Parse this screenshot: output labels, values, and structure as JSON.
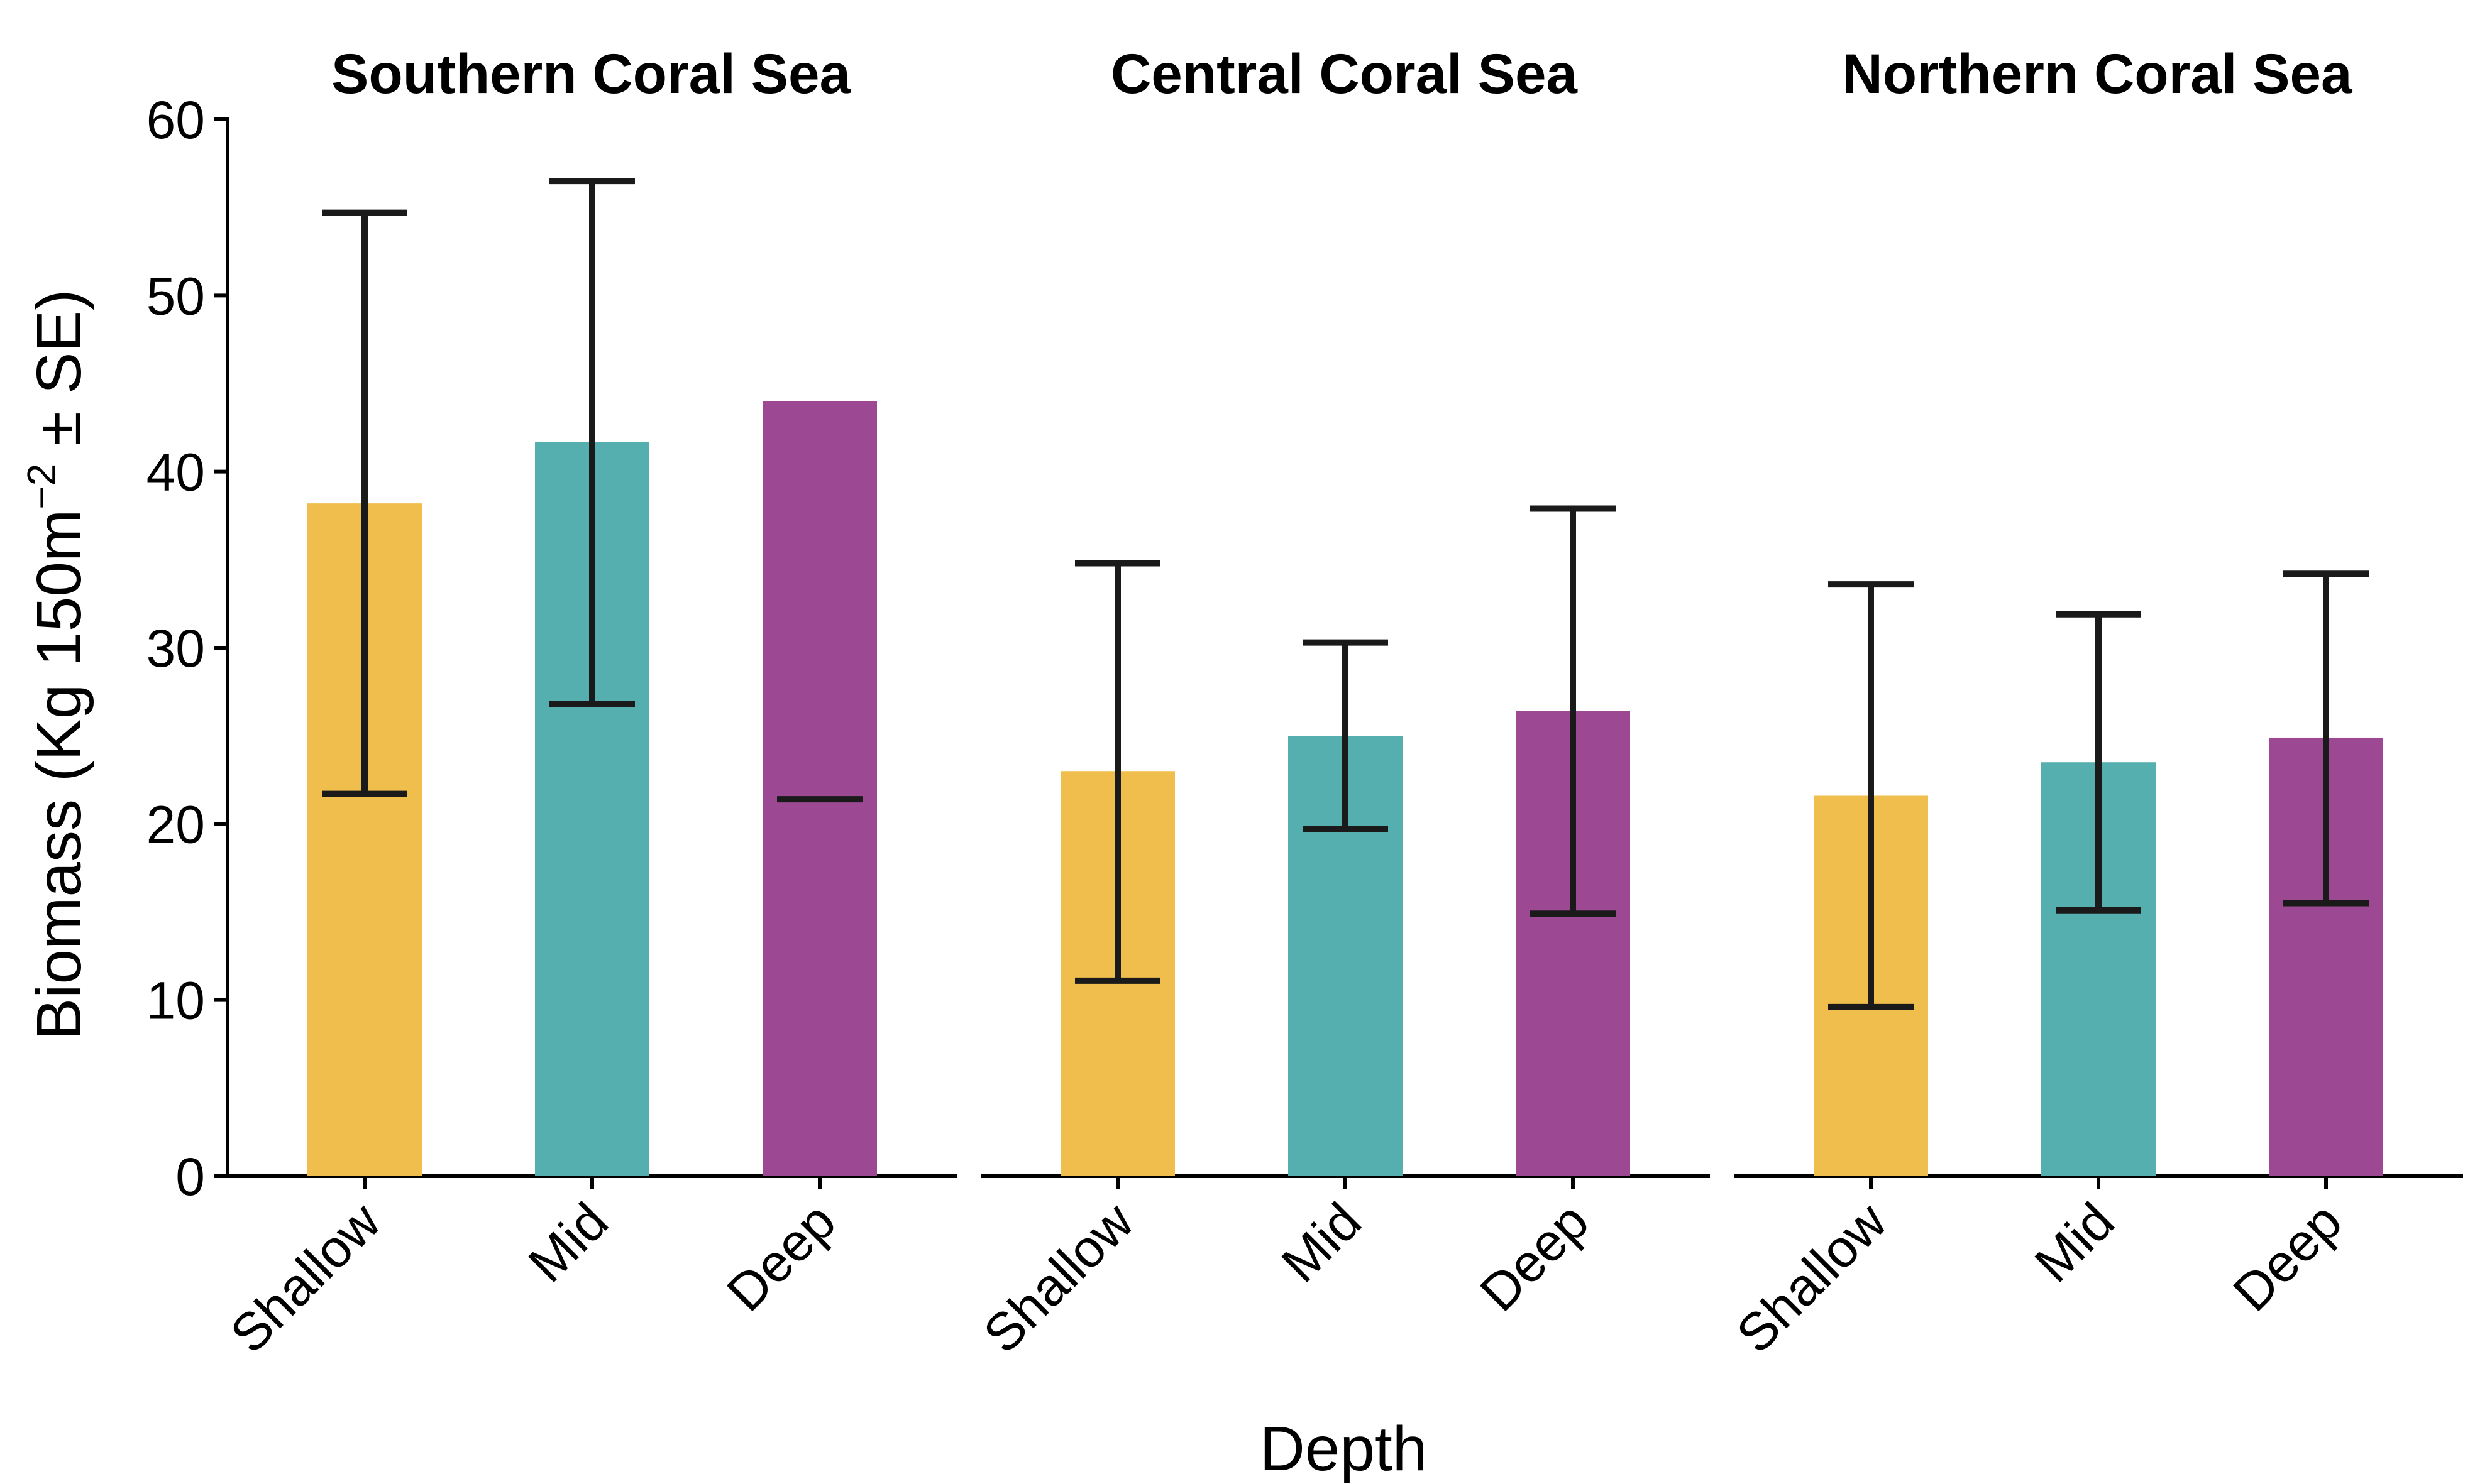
{
  "chart_data": {
    "type": "bar",
    "xlabel": "Depth",
    "ylabel": "Biomass (Kg 150m",
    "ylabel_sup": "−2",
    "ylabel_tail": " ± SE)",
    "ylim": [
      0,
      60
    ],
    "yticks": [
      "0",
      "10",
      "20",
      "30",
      "40",
      "50",
      "60"
    ],
    "grid": false,
    "categories": [
      "Shallow",
      "Mid",
      "Deep"
    ],
    "colors": {
      "Shallow": "#F0BE4C",
      "Mid": "#55AFAE",
      "Deep": "#9C4893"
    },
    "panels": [
      {
        "title": "Southern Coral Sea",
        "values": [
          38.2,
          41.7,
          44.0
        ],
        "error_lower": [
          21.7,
          26.8,
          21.4
        ],
        "error_upper": [
          54.7,
          56.5,
          null
        ]
      },
      {
        "title": "Central Coral Sea",
        "values": [
          23.0,
          25.0,
          26.4
        ],
        "error_lower": [
          11.1,
          19.7,
          14.9
        ],
        "error_upper": [
          34.8,
          30.3,
          37.9
        ]
      },
      {
        "title": "Northern Coral Sea",
        "values": [
          21.6,
          23.5,
          24.9
        ],
        "error_lower": [
          9.6,
          15.1,
          15.5
        ],
        "error_upper": [
          33.6,
          31.9,
          34.2
        ]
      }
    ]
  }
}
